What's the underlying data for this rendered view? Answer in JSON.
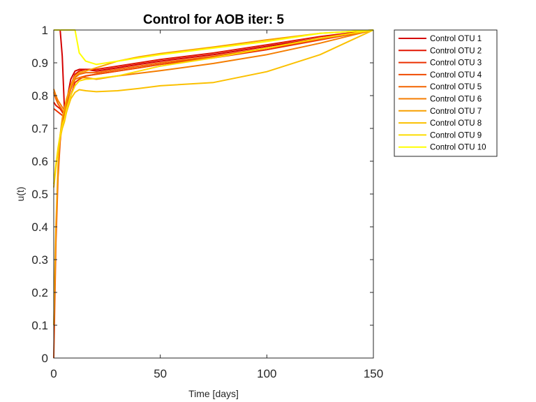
{
  "chart_data": {
    "type": "line",
    "title": "Control for AOB iter: 5",
    "xlabel": "Time [days]",
    "ylabel": "u(t)",
    "xlim": [
      0,
      150
    ],
    "ylim": [
      0,
      1
    ],
    "xticks": [
      0,
      50,
      100,
      150
    ],
    "yticks": [
      0,
      0.1,
      0.2,
      0.3,
      0.4,
      0.5,
      0.6,
      0.7,
      0.8,
      0.9,
      1
    ],
    "grid": false,
    "legend_position": "outside-top-right",
    "series": [
      {
        "name": "Control OTU 1",
        "color": "#d40000",
        "x": [
          0,
          1,
          2,
          3,
          4,
          5,
          6,
          8,
          10,
          12,
          15,
          20,
          30,
          40,
          50,
          75,
          100,
          125,
          150
        ],
        "y": [
          1.0,
          1.0,
          1.0,
          1.0,
          0.92,
          0.76,
          0.78,
          0.85,
          0.875,
          0.88,
          0.88,
          0.875,
          0.885,
          0.895,
          0.905,
          0.925,
          0.95,
          0.975,
          1.0
        ]
      },
      {
        "name": "Control OTU 2",
        "color": "#e21500",
        "x": [
          0,
          1,
          2,
          3,
          4,
          5,
          6,
          8,
          10,
          12,
          15,
          20,
          30,
          40,
          50,
          75,
          100,
          125,
          150
        ],
        "y": [
          0.78,
          0.77,
          0.765,
          0.76,
          0.75,
          0.74,
          0.77,
          0.83,
          0.865,
          0.875,
          0.88,
          0.88,
          0.89,
          0.9,
          0.91,
          0.93,
          0.955,
          0.98,
          1.0
        ]
      },
      {
        "name": "Control OTU 3",
        "color": "#eb3000",
        "x": [
          0,
          1,
          2,
          3,
          4,
          5,
          6,
          8,
          10,
          12,
          15,
          20,
          30,
          40,
          50,
          75,
          100,
          125,
          150
        ],
        "y": [
          0.76,
          0.755,
          0.75,
          0.745,
          0.74,
          0.73,
          0.75,
          0.8,
          0.84,
          0.85,
          0.86,
          0.865,
          0.875,
          0.885,
          0.895,
          0.915,
          0.94,
          0.97,
          1.0
        ]
      },
      {
        "name": "Control OTU 4",
        "color": "#f04a00",
        "x": [
          0,
          1,
          2,
          3,
          4,
          5,
          6,
          8,
          10,
          12,
          15,
          20,
          30,
          40,
          50,
          75,
          100,
          125,
          150
        ],
        "y": [
          0.0,
          0.35,
          0.55,
          0.66,
          0.72,
          0.75,
          0.78,
          0.82,
          0.85,
          0.855,
          0.86,
          0.865,
          0.875,
          0.885,
          0.895,
          0.918,
          0.945,
          0.972,
          1.0
        ]
      },
      {
        "name": "Control OTU 5",
        "color": "#f36400",
        "x": [
          0,
          1,
          2,
          3,
          4,
          5,
          6,
          8,
          10,
          12,
          15,
          20,
          30,
          40,
          50,
          75,
          100,
          125,
          150
        ],
        "y": [
          0.81,
          0.79,
          0.775,
          0.765,
          0.755,
          0.745,
          0.77,
          0.82,
          0.855,
          0.865,
          0.87,
          0.87,
          0.88,
          0.89,
          0.9,
          0.92,
          0.945,
          0.972,
          1.0
        ]
      },
      {
        "name": "Control OTU 6",
        "color": "#f57d00",
        "x": [
          0,
          1,
          2,
          3,
          4,
          5,
          6,
          8,
          10,
          12,
          15,
          20,
          30,
          40,
          50,
          75,
          100,
          125,
          150
        ],
        "y": [
          0.82,
          0.8,
          0.785,
          0.775,
          0.765,
          0.755,
          0.78,
          0.825,
          0.85,
          0.855,
          0.855,
          0.85,
          0.86,
          0.868,
          0.876,
          0.898,
          0.925,
          0.96,
          1.0
        ]
      },
      {
        "name": "Control OTU 7",
        "color": "#f8a000",
        "x": [
          0,
          1,
          2,
          3,
          4,
          5,
          6,
          8,
          10,
          12,
          15,
          20,
          30,
          40,
          50,
          75,
          100,
          125,
          150
        ],
        "y": [
          0.1,
          0.4,
          0.58,
          0.68,
          0.73,
          0.76,
          0.79,
          0.83,
          0.86,
          0.87,
          0.875,
          0.885,
          0.905,
          0.918,
          0.928,
          0.948,
          0.97,
          0.99,
          1.0
        ]
      },
      {
        "name": "Control OTU 8",
        "color": "#fbc000",
        "x": [
          0,
          1,
          2,
          3,
          4,
          5,
          6,
          8,
          10,
          12,
          15,
          20,
          30,
          40,
          50,
          75,
          100,
          125,
          150
        ],
        "y": [
          0.52,
          0.58,
          0.63,
          0.67,
          0.7,
          0.72,
          0.75,
          0.79,
          0.81,
          0.818,
          0.815,
          0.812,
          0.815,
          0.822,
          0.83,
          0.84,
          0.873,
          0.925,
          1.0
        ]
      },
      {
        "name": "Control OTU 9",
        "color": "#fcdc00",
        "x": [
          0,
          1,
          2,
          3,
          4,
          5,
          6,
          8,
          10,
          12,
          15,
          20,
          30,
          40,
          50,
          75,
          100,
          125,
          150
        ],
        "y": [
          0.53,
          0.59,
          0.64,
          0.68,
          0.71,
          0.73,
          0.76,
          0.8,
          0.83,
          0.845,
          0.85,
          0.852,
          0.86,
          0.875,
          0.89,
          0.915,
          0.945,
          0.975,
          1.0
        ]
      },
      {
        "name": "Control OTU 10",
        "color": "#ffff00",
        "x": [
          0,
          1,
          2,
          3,
          4,
          5,
          6,
          8,
          10,
          12,
          15,
          20,
          30,
          40,
          50,
          75,
          100,
          125,
          150
        ],
        "y": [
          1.0,
          1.0,
          1.0,
          1.0,
          1.0,
          1.0,
          1.0,
          1.0,
          1.0,
          0.93,
          0.905,
          0.895,
          0.905,
          0.915,
          0.925,
          0.945,
          0.965,
          0.99,
          1.0
        ]
      }
    ]
  }
}
